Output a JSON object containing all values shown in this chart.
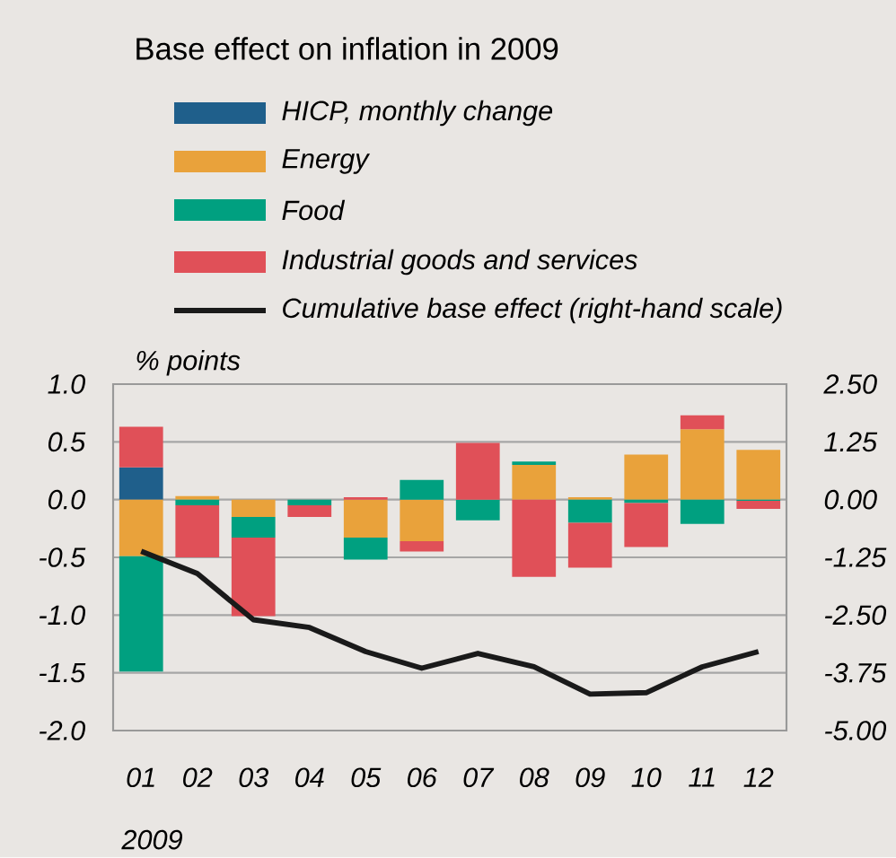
{
  "chart_data": {
    "type": "bar",
    "title": "Base effect on inflation in 2009",
    "xlabel": "2009",
    "ylabel": "% points",
    "stacked": true,
    "grid": "y",
    "legend": "top",
    "categories": [
      "01",
      "02",
      "03",
      "04",
      "05",
      "06",
      "07",
      "08",
      "09",
      "10",
      "11",
      "12"
    ],
    "series": [
      {
        "name": "HICP, monthly change",
        "color": "#1f5f8b",
        "values": [
          0.28,
          0,
          0,
          0,
          0,
          0,
          0,
          0,
          0,
          0,
          0,
          0
        ]
      },
      {
        "name": "Energy",
        "color": "#e9a23b",
        "values": [
          -0.49,
          0.03,
          -0.15,
          0,
          -0.33,
          -0.36,
          0,
          0.3,
          0.02,
          0.39,
          0.61,
          0.43
        ]
      },
      {
        "name": "Food",
        "color": "#00a080",
        "values": [
          -1.0,
          -0.05,
          -0.18,
          -0.05,
          -0.19,
          0.17,
          -0.18,
          0.03,
          -0.2,
          -0.03,
          -0.21,
          -0.01
        ]
      },
      {
        "name": "Industrial goods and services",
        "color": "#e05058",
        "values": [
          0.35,
          -0.45,
          -0.68,
          -0.1,
          0.02,
          -0.09,
          0.49,
          -0.67,
          -0.39,
          -0.38,
          0.12,
          -0.07
        ]
      },
      {
        "name": "Cumulative base effect (right-hand scale)",
        "type": "line",
        "axis": "y2",
        "color": "#1a1a1a",
        "line_style": "solid",
        "values": [
          -1.12,
          -1.6,
          -2.6,
          -2.77,
          -3.29,
          -3.65,
          -3.33,
          -3.62,
          -4.21,
          -4.18,
          -3.62,
          -3.29
        ]
      }
    ],
    "ylim": [
      -2,
      1
    ],
    "yticks": [
      {
        "value": 1,
        "label": "1.0"
      },
      {
        "value": 0.5,
        "label": "0.5"
      },
      {
        "value": 0,
        "label": "0.0"
      },
      {
        "value": -0.5,
        "label": "-0.5"
      },
      {
        "value": -1,
        "label": "-1.0"
      },
      {
        "value": -1.5,
        "label": "-1.5"
      },
      {
        "value": -2,
        "label": "-2.0"
      }
    ],
    "y2lim": [
      -5,
      2.5
    ],
    "y2ticks": [
      {
        "value": 2.5,
        "label": "2.50"
      },
      {
        "value": 1.25,
        "label": "1.25"
      },
      {
        "value": 0,
        "label": "0.00"
      },
      {
        "value": -1.25,
        "label": "-1.25"
      },
      {
        "value": -2.5,
        "label": "-2.50"
      },
      {
        "value": -3.75,
        "label": "-3.75"
      },
      {
        "value": -5,
        "label": "-5.00"
      }
    ]
  }
}
